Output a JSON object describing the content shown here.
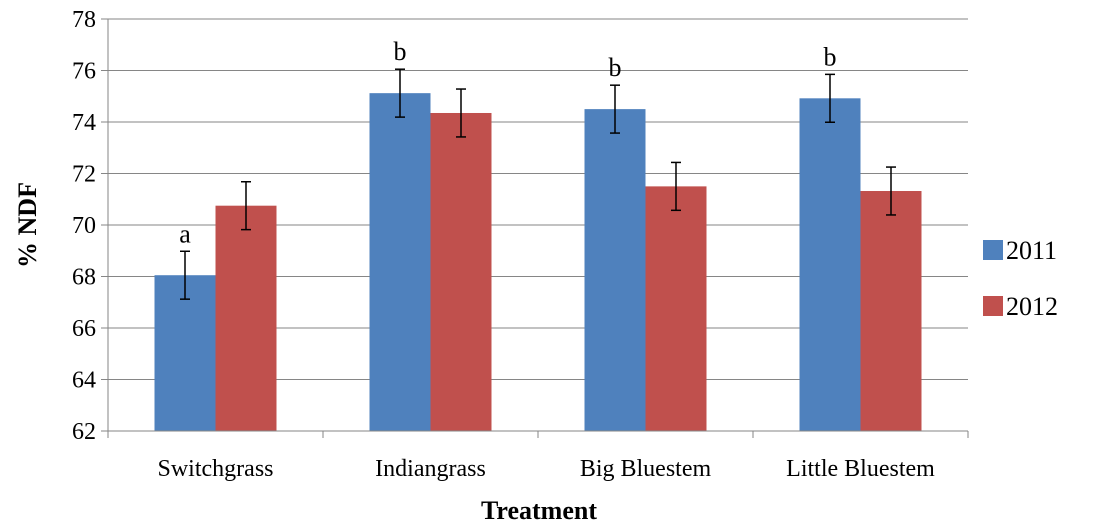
{
  "chart_data": {
    "type": "bar",
    "categories": [
      "Switchgrass",
      "Indiangrass",
      "Big Bluestem",
      "Little Bluestem"
    ],
    "series": [
      {
        "name": "2011",
        "values": [
          68.05,
          75.12,
          74.5,
          74.92
        ],
        "error": [
          0.93,
          0.93,
          0.93,
          0.93
        ],
        "color": "#4F81BD"
      },
      {
        "name": "2012",
        "values": [
          70.75,
          74.35,
          71.5,
          71.32
        ],
        "error": [
          0.93,
          0.93,
          0.93,
          0.93
        ],
        "color": "#C0504D"
      }
    ],
    "annotations": [
      {
        "category": "Switchgrass",
        "series": "2011",
        "text": "a"
      },
      {
        "category": "Indiangrass",
        "series": "2011",
        "text": "b"
      },
      {
        "category": "Big Bluestem",
        "series": "2011",
        "text": "b"
      },
      {
        "category": "Little Bluestem",
        "series": "2011",
        "text": "b"
      }
    ],
    "xlabel": "Treatment",
    "ylabel": "% NDF",
    "ylim": [
      62,
      78
    ],
    "yticks": [
      62,
      64,
      66,
      68,
      70,
      72,
      74,
      76,
      78
    ],
    "grid": true,
    "legend": "right"
  }
}
